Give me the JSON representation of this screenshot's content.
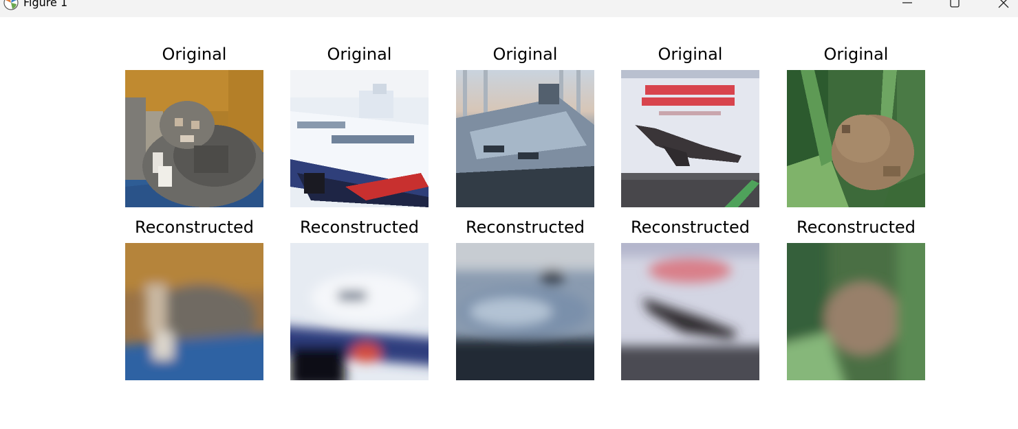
{
  "window": {
    "title": "Figure 1",
    "icons": {
      "app": "matplotlib-icon",
      "minimize": "minimize-icon",
      "maximize": "maximize-icon",
      "close": "close-icon"
    }
  },
  "panels": {
    "row_titles": {
      "original": "Original",
      "reconstructed": "Reconstructed"
    },
    "columns": [
      {
        "subject": "cat"
      },
      {
        "subject": "ship-red-hull"
      },
      {
        "subject": "boat-marina"
      },
      {
        "subject": "airplane-sign"
      },
      {
        "subject": "frog"
      }
    ]
  }
}
